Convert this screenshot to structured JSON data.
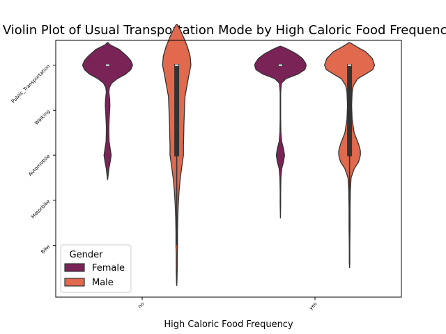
{
  "chart_data": {
    "type": "violin",
    "title": "Violin Plot of Usual Transportation Mode by High Caloric Food Frequency",
    "xlabel": "High Caloric Food Frequency",
    "ylabel": "",
    "categories": [
      "no",
      "yes"
    ],
    "y_categories": [
      "Public_Transportation",
      "Walking",
      "Automobile",
      "Motorbike",
      "Bike"
    ],
    "ylim": [
      5.15,
      -0.55
    ],
    "grid": false,
    "legend": {
      "title": "Gender",
      "position": "lower-left"
    },
    "series": [
      {
        "name": "Female",
        "color": "#7a2357",
        "groups": [
          {
            "category": "no",
            "median": 0,
            "q1": 0,
            "q3": 0,
            "whisker_low": 0,
            "whisker_high": 0,
            "density": [
              [
                -0.5,
                0.01
              ],
              [
                -0.45,
                0.1
              ],
              [
                -0.35,
                0.45
              ],
              [
                -0.2,
                0.75
              ],
              [
                -0.1,
                0.9
              ],
              [
                0,
                0.97
              ],
              [
                0.1,
                0.9
              ],
              [
                0.2,
                0.7
              ],
              [
                0.3,
                0.38
              ],
              [
                0.4,
                0.16
              ],
              [
                0.5,
                0.07
              ],
              [
                0.6,
                0.05
              ],
              [
                0.75,
                0.08
              ],
              [
                0.9,
                0.09
              ],
              [
                1.1,
                0.07
              ],
              [
                1.35,
                0.05
              ],
              [
                1.5,
                0.05
              ],
              [
                1.7,
                0.06
              ],
              [
                1.85,
                0.1
              ],
              [
                2.0,
                0.14
              ],
              [
                2.15,
                0.1
              ],
              [
                2.3,
                0.05
              ],
              [
                2.45,
                0.02
              ],
              [
                2.55,
                0.0
              ]
            ]
          },
          {
            "category": "yes",
            "median": 0,
            "q1": 0,
            "q3": 0,
            "whisker_low": 0,
            "whisker_high": 0,
            "density": [
              [
                -0.42,
                0.02
              ],
              [
                -0.35,
                0.3
              ],
              [
                -0.25,
                0.62
              ],
              [
                -0.15,
                0.85
              ],
              [
                -0.05,
                0.97
              ],
              [
                0,
                1.0
              ],
              [
                0.1,
                0.95
              ],
              [
                0.2,
                0.68
              ],
              [
                0.3,
                0.22
              ],
              [
                0.4,
                0.04
              ],
              [
                0.6,
                0.01
              ],
              [
                0.9,
                0.01
              ],
              [
                1.2,
                0.01
              ],
              [
                1.5,
                0.02
              ],
              [
                1.7,
                0.05
              ],
              [
                1.85,
                0.12
              ],
              [
                2.0,
                0.16
              ],
              [
                2.15,
                0.12
              ],
              [
                2.3,
                0.05
              ],
              [
                2.5,
                0.02
              ],
              [
                2.8,
                0.01
              ],
              [
                3.1,
                0.01
              ],
              [
                3.4,
                0.0
              ]
            ]
          }
        ]
      },
      {
        "name": "Male",
        "color": "#e0694e",
        "groups": [
          {
            "category": "no",
            "median": 0,
            "q1": 0,
            "q3": 2,
            "whisker_low": 0,
            "whisker_high": 4,
            "density": [
              [
                -0.9,
                0.02
              ],
              [
                -0.8,
                0.12
              ],
              [
                -0.6,
                0.28
              ],
              [
                -0.4,
                0.42
              ],
              [
                -0.2,
                0.52
              ],
              [
                0,
                0.55
              ],
              [
                0.2,
                0.48
              ],
              [
                0.45,
                0.4
              ],
              [
                0.7,
                0.32
              ],
              [
                1.0,
                0.3
              ],
              [
                1.3,
                0.28
              ],
              [
                1.6,
                0.27
              ],
              [
                1.8,
                0.26
              ],
              [
                2.0,
                0.26
              ],
              [
                2.2,
                0.21
              ],
              [
                2.5,
                0.14
              ],
              [
                2.8,
                0.09
              ],
              [
                3.1,
                0.06
              ],
              [
                3.4,
                0.04
              ],
              [
                3.7,
                0.03
              ],
              [
                4.0,
                0.03
              ],
              [
                4.2,
                0.02
              ],
              [
                4.5,
                0.02
              ],
              [
                4.8,
                0.01
              ],
              [
                4.9,
                0.0
              ]
            ]
          },
          {
            "category": "yes",
            "median": 0,
            "q1": 0,
            "q3": 2,
            "whisker_low": 0,
            "whisker_high": 4,
            "density": [
              [
                -0.5,
                0.02
              ],
              [
                -0.4,
                0.3
              ],
              [
                -0.3,
                0.62
              ],
              [
                -0.15,
                0.88
              ],
              [
                0,
                0.97
              ],
              [
                0.1,
                0.9
              ],
              [
                0.2,
                0.62
              ],
              [
                0.3,
                0.32
              ],
              [
                0.45,
                0.15
              ],
              [
                0.6,
                0.1
              ],
              [
                0.9,
                0.08
              ],
              [
                1.2,
                0.1
              ],
              [
                1.5,
                0.18
              ],
              [
                1.75,
                0.35
              ],
              [
                1.9,
                0.42
              ],
              [
                2.0,
                0.42
              ],
              [
                2.15,
                0.35
              ],
              [
                2.3,
                0.18
              ],
              [
                2.5,
                0.06
              ],
              [
                2.8,
                0.03
              ],
              [
                3.2,
                0.02
              ],
              [
                3.6,
                0.02
              ],
              [
                4.0,
                0.01
              ],
              [
                4.4,
                0.01
              ],
              [
                4.5,
                0.0
              ]
            ]
          }
        ]
      }
    ]
  }
}
